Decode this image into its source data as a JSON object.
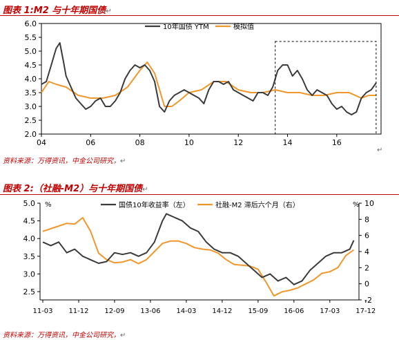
{
  "figure1": {
    "title": "图表 1:M2 与十年期国债",
    "source": "资料来源：万得资讯，中金公司研究，",
    "colors": {
      "series1": "#3a3a3a",
      "series2": "#f0962a"
    },
    "chart_data": {
      "type": "line",
      "xlim": [
        2004,
        2017.8
      ],
      "ylim": [
        2.0,
        6.0
      ],
      "xticks": [
        "04",
        "06",
        "08",
        "10",
        "12",
        "14",
        "16"
      ],
      "yticks": [
        "2.0",
        "2.5",
        "3.0",
        "3.5",
        "4.0",
        "4.5",
        "5.0",
        "5.5",
        "6.0"
      ],
      "legend_position": "top-center",
      "annotation": "dashed box 2013.5–2017.6",
      "highlight_box": {
        "x": [
          2013.5,
          2017.6
        ],
        "y": [
          2.0,
          5.35
        ]
      },
      "series": [
        {
          "name": "10年国债 YTM",
          "x": [
            2004.0,
            2004.2,
            2004.4,
            2004.5,
            2004.6,
            2004.75,
            2004.9,
            2005.0,
            2005.2,
            2005.4,
            2005.6,
            2005.8,
            2006.0,
            2006.2,
            2006.4,
            2006.6,
            2006.8,
            2007.0,
            2007.2,
            2007.4,
            2007.6,
            2007.8,
            2008.0,
            2008.2,
            2008.4,
            2008.6,
            2008.8,
            2009.0,
            2009.2,
            2009.4,
            2009.6,
            2009.8,
            2010.0,
            2010.2,
            2010.4,
            2010.6,
            2010.8,
            2011.0,
            2011.2,
            2011.4,
            2011.6,
            2011.8,
            2012.0,
            2012.2,
            2012.4,
            2012.6,
            2012.8,
            2013.0,
            2013.2,
            2013.4,
            2013.6,
            2013.8,
            2014.0,
            2014.2,
            2014.4,
            2014.6,
            2014.8,
            2015.0,
            2015.2,
            2015.4,
            2015.6,
            2015.8,
            2016.0,
            2016.2,
            2016.4,
            2016.6,
            2016.8,
            2017.0,
            2017.2,
            2017.4,
            2017.6
          ],
          "y": [
            3.8,
            3.9,
            4.5,
            4.8,
            5.1,
            5.3,
            4.6,
            4.1,
            3.7,
            3.3,
            3.1,
            2.9,
            3.0,
            3.2,
            3.3,
            3.0,
            3.0,
            3.2,
            3.5,
            4.0,
            4.3,
            4.5,
            4.4,
            4.5,
            4.3,
            3.9,
            3.0,
            2.8,
            3.2,
            3.4,
            3.5,
            3.6,
            3.5,
            3.4,
            3.3,
            3.1,
            3.6,
            3.9,
            3.9,
            3.8,
            3.9,
            3.6,
            3.5,
            3.4,
            3.3,
            3.2,
            3.5,
            3.5,
            3.4,
            3.7,
            4.3,
            4.5,
            4.5,
            4.1,
            4.3,
            4.0,
            3.6,
            3.4,
            3.6,
            3.5,
            3.4,
            3.1,
            2.9,
            3.0,
            2.8,
            2.7,
            2.8,
            3.3,
            3.5,
            3.6,
            3.85
          ]
        },
        {
          "name": "模拟值",
          "x": [
            2004.0,
            2004.3,
            2004.6,
            2005.0,
            2005.5,
            2006.0,
            2006.5,
            2007.0,
            2007.5,
            2008.0,
            2008.3,
            2008.6,
            2009.0,
            2009.3,
            2009.6,
            2010.0,
            2010.5,
            2011.0,
            2011.5,
            2012.0,
            2012.5,
            2013.0,
            2013.5,
            2014.0,
            2014.5,
            2015.0,
            2015.5,
            2016.0,
            2016.5,
            2017.0,
            2017.3,
            2017.6
          ],
          "y": [
            3.5,
            3.9,
            3.8,
            3.7,
            3.4,
            3.3,
            3.3,
            3.4,
            3.7,
            4.3,
            4.6,
            4.2,
            3.0,
            3.0,
            3.2,
            3.5,
            3.6,
            3.9,
            3.9,
            3.6,
            3.5,
            3.5,
            3.6,
            3.5,
            3.5,
            3.4,
            3.4,
            3.5,
            3.5,
            3.3,
            3.4,
            3.4
          ]
        }
      ]
    }
  },
  "figure2": {
    "title": "图表 2:（社融-M2）与十年期国债",
    "source": "资料来源：万得资讯，中金公司研究，",
    "colors": {
      "series1": "#3a3a3a",
      "series2": "#f0962a"
    },
    "chart_data": {
      "type": "line",
      "xlim": [
        0,
        80
      ],
      "ylim_left": [
        2.5,
        5.0
      ],
      "ylim_right": [
        -2,
        10
      ],
      "left_unit": "%",
      "right_unit": "%",
      "xticks": [
        {
          "label": "11-03",
          "pos": 0
        },
        {
          "label": "11-12",
          "pos": 9
        },
        {
          "label": "12-09",
          "pos": 18
        },
        {
          "label": "13-06",
          "pos": 27
        },
        {
          "label": "14-03",
          "pos": 36
        },
        {
          "label": "14-12",
          "pos": 45
        },
        {
          "label": "15-09",
          "pos": 54
        },
        {
          "label": "16-06",
          "pos": 63
        },
        {
          "label": "17-03",
          "pos": 72
        },
        {
          "label": "17-12",
          "pos": 81
        }
      ],
      "yticks_left": [
        "2.5",
        "3.0",
        "3.5",
        "4.0",
        "4.5",
        "5.0"
      ],
      "yticks_right": [
        "-2",
        "0",
        "2",
        "4",
        "6",
        "8",
        "10"
      ],
      "legend_position": "top",
      "series": [
        {
          "name": "国债10年收益率（左）",
          "axis": "left",
          "x": [
            0,
            2,
            4,
            6,
            8,
            10,
            12,
            14,
            16,
            18,
            20,
            22,
            24,
            26,
            28,
            30,
            31,
            33,
            35,
            37,
            39,
            41,
            43,
            45,
            47,
            49,
            51,
            53,
            55,
            57,
            59,
            61,
            63,
            65,
            67,
            69,
            71,
            73,
            75,
            77,
            78
          ],
          "y": [
            3.9,
            3.8,
            3.9,
            3.6,
            3.7,
            3.5,
            3.4,
            3.3,
            3.35,
            3.6,
            3.55,
            3.6,
            3.5,
            3.6,
            3.9,
            4.5,
            4.7,
            4.6,
            4.5,
            4.3,
            4.2,
            3.9,
            3.7,
            3.6,
            3.6,
            3.5,
            3.3,
            3.1,
            2.9,
            3.0,
            2.8,
            2.9,
            2.7,
            2.8,
            3.1,
            3.3,
            3.5,
            3.6,
            3.6,
            3.7,
            3.95
          ]
        },
        {
          "name": "社融-M2 滞后六个月（右）",
          "axis": "right",
          "x": [
            0,
            3,
            6,
            8,
            10,
            12,
            14,
            16,
            18,
            20,
            22,
            24,
            26,
            28,
            30,
            32,
            34,
            36,
            38,
            40,
            42,
            44,
            46,
            48,
            50,
            52,
            54,
            56,
            58,
            60,
            62,
            64,
            66,
            68,
            70,
            72,
            74,
            76,
            78
          ],
          "y": [
            6.5,
            7.0,
            7.5,
            7.4,
            8.2,
            6.5,
            3.8,
            3.0,
            2.6,
            2.7,
            3.0,
            2.5,
            3.0,
            4.0,
            5.0,
            5.3,
            5.3,
            5.0,
            4.5,
            4.3,
            4.2,
            3.8,
            3.0,
            2.4,
            2.3,
            2.2,
            1.8,
            0.2,
            -1.5,
            -1.0,
            -0.8,
            -0.5,
            0.0,
            0.5,
            1.3,
            1.5,
            2.0,
            3.5,
            4.2
          ]
        }
      ]
    }
  }
}
